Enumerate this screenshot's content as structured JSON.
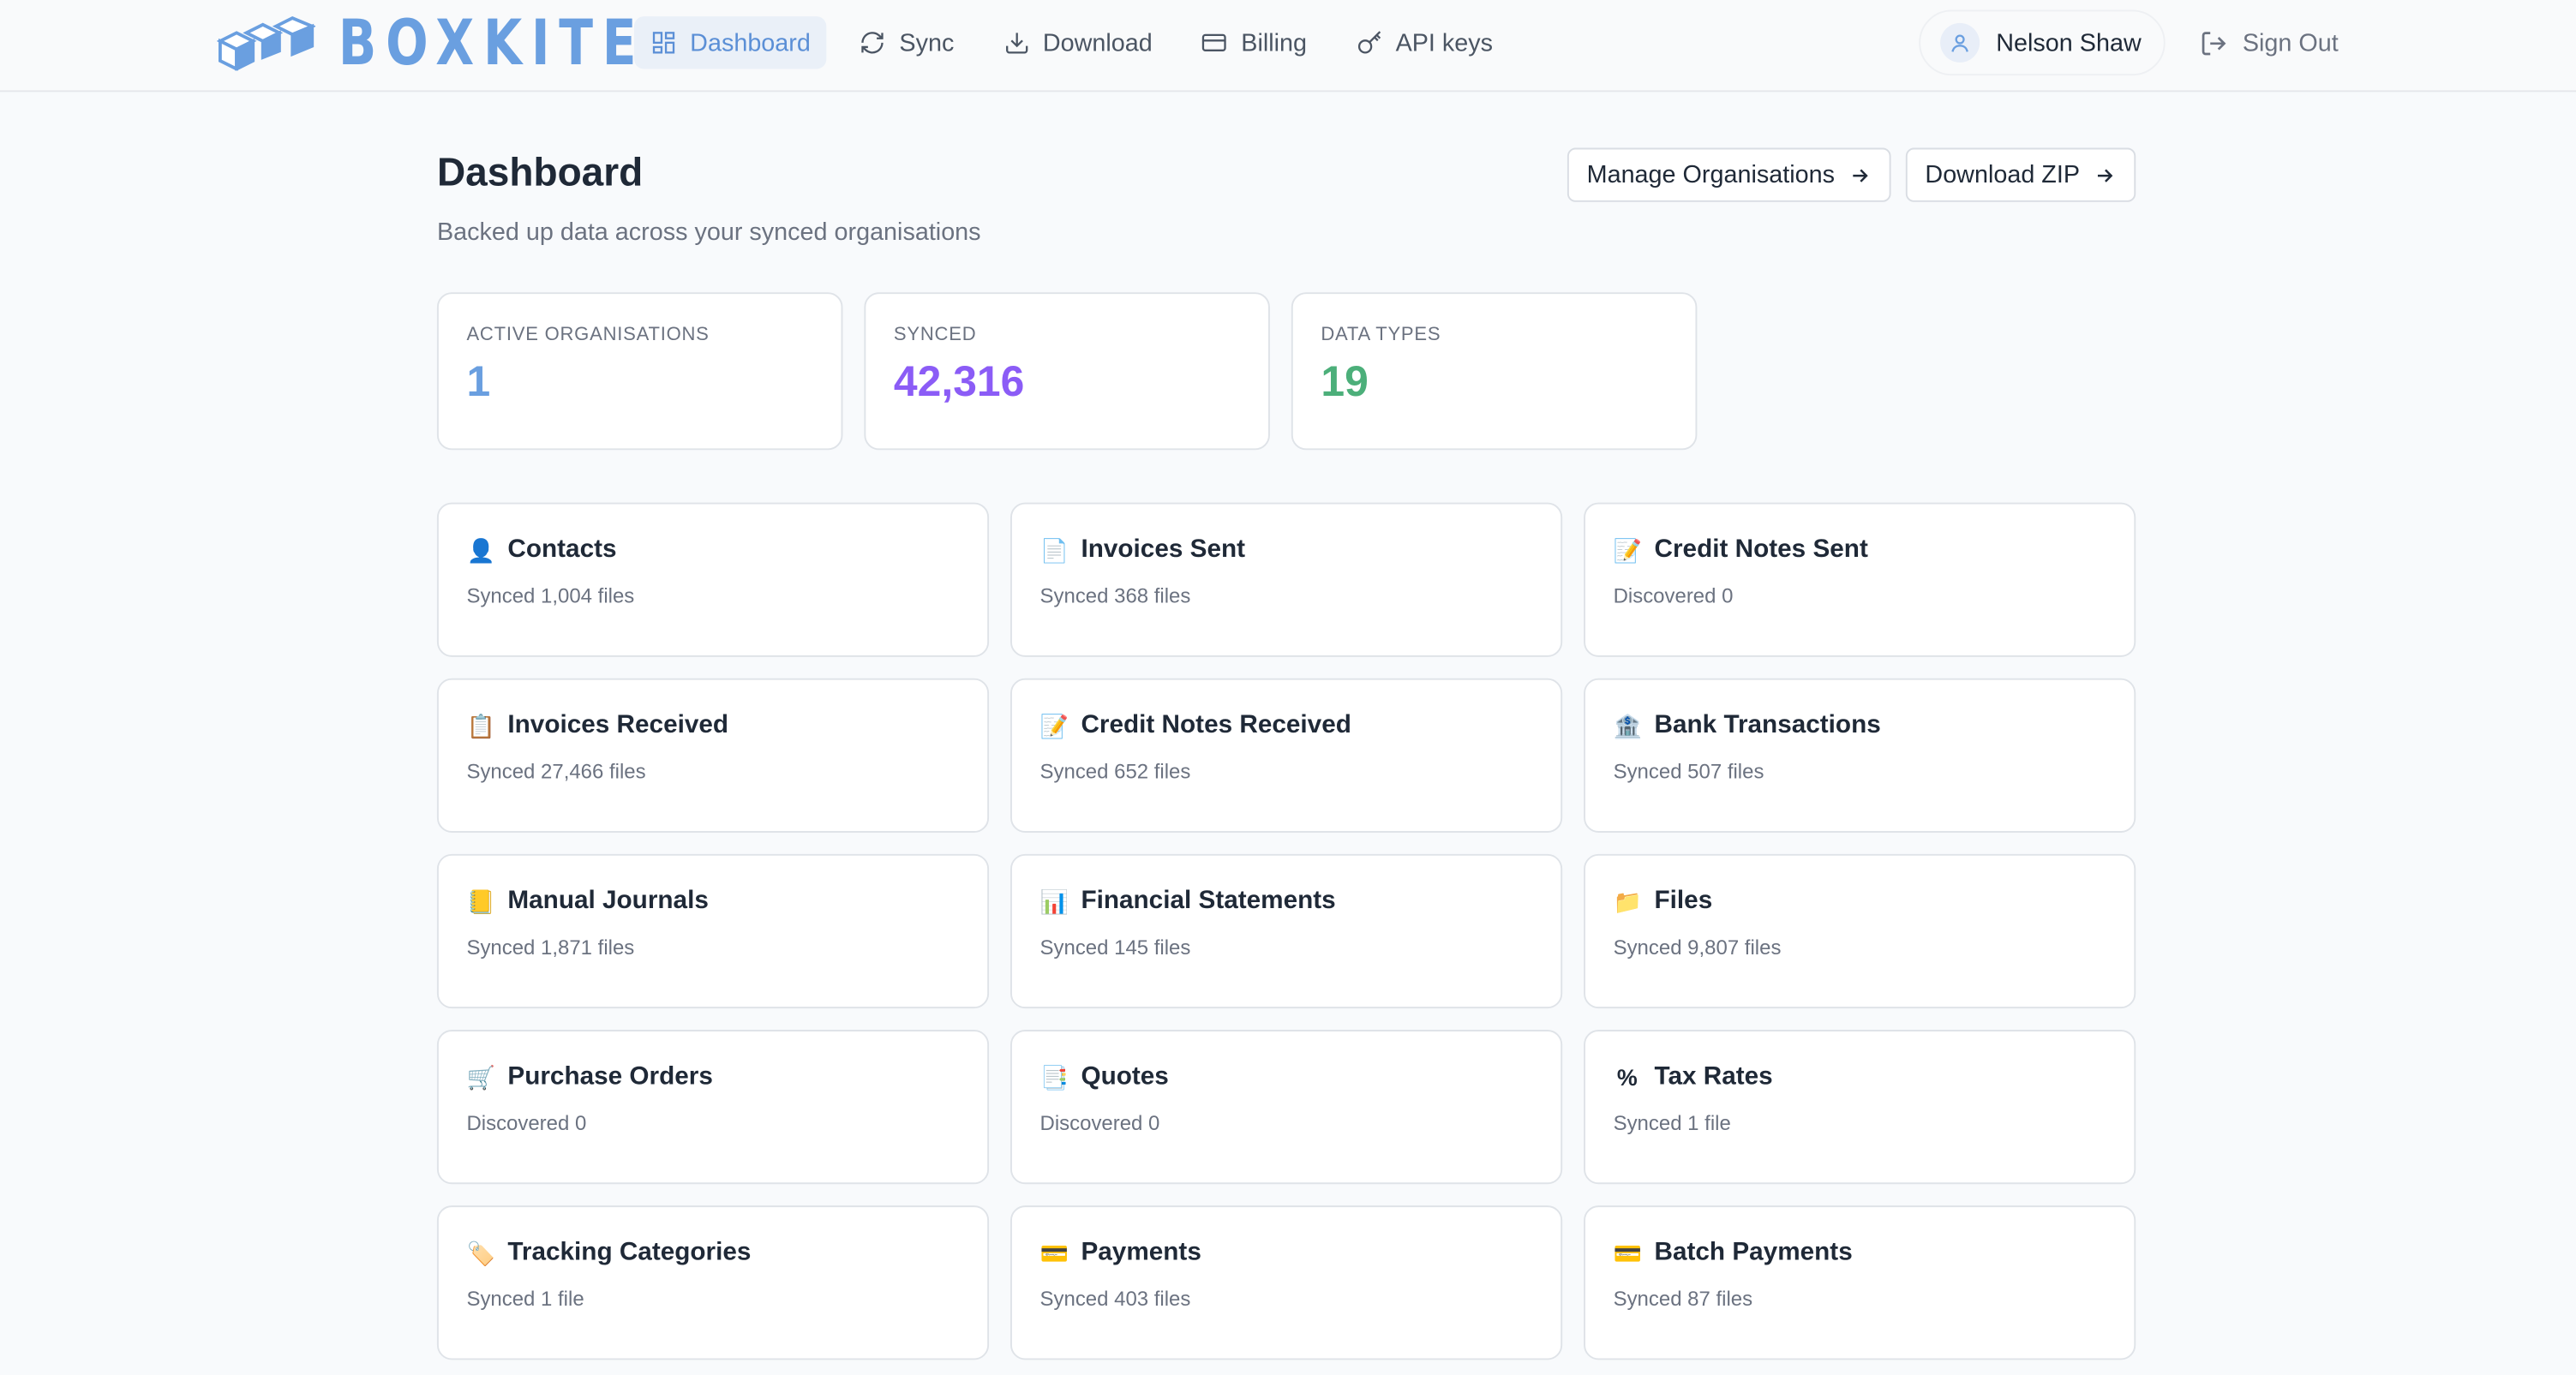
{
  "header": {
    "logo": "BOXKITE",
    "nav": [
      "Dashboard",
      "Sync",
      "Download",
      "Billing",
      "API keys"
    ],
    "user": "Nelson Shaw",
    "sign_out": "Sign Out"
  },
  "page": {
    "title": "Dashboard",
    "subtitle": "Backed up data across your synced organisations",
    "buttons": [
      "Manage Organisations",
      "Download ZIP"
    ]
  },
  "stats": [
    {
      "label": "ACTIVE ORGANISATIONS",
      "value": "1"
    },
    {
      "label": "SYNCED",
      "value": "42,316"
    },
    {
      "label": "DATA TYPES",
      "value": "19"
    }
  ],
  "cards": [
    {
      "icon": "👤",
      "title": "Contacts",
      "status": "Synced 1,004 files"
    },
    {
      "icon": "📄",
      "title": "Invoices Sent",
      "status": "Synced 368 files"
    },
    {
      "icon": "📝",
      "title": "Credit Notes Sent",
      "status": "Discovered 0"
    },
    {
      "icon": "📋",
      "title": "Invoices Received",
      "status": "Synced 27,466 files"
    },
    {
      "icon": "📝",
      "title": "Credit Notes Received",
      "status": "Synced 652 files"
    },
    {
      "icon": "🏦",
      "title": "Bank Transactions",
      "status": "Synced 507 files"
    },
    {
      "icon": "📒",
      "title": "Manual Journals",
      "status": "Synced 1,871 files"
    },
    {
      "icon": "📊",
      "title": "Financial Statements",
      "status": "Synced 145 files"
    },
    {
      "icon": "📁",
      "title": "Files",
      "status": "Synced 9,807 files"
    },
    {
      "icon": "🛒",
      "title": "Purchase Orders",
      "status": "Discovered 0"
    },
    {
      "icon": "📑",
      "title": "Quotes",
      "status": "Discovered 0"
    },
    {
      "icon": "%",
      "title": "Tax Rates",
      "status": "Synced 1 file"
    },
    {
      "icon": "🏷️",
      "title": "Tracking Categories",
      "status": "Synced 1 file"
    },
    {
      "icon": "💳",
      "title": "Payments",
      "status": "Synced 403 files"
    },
    {
      "icon": "💳",
      "title": "Batch Payments",
      "status": "Synced 87 files"
    }
  ]
}
